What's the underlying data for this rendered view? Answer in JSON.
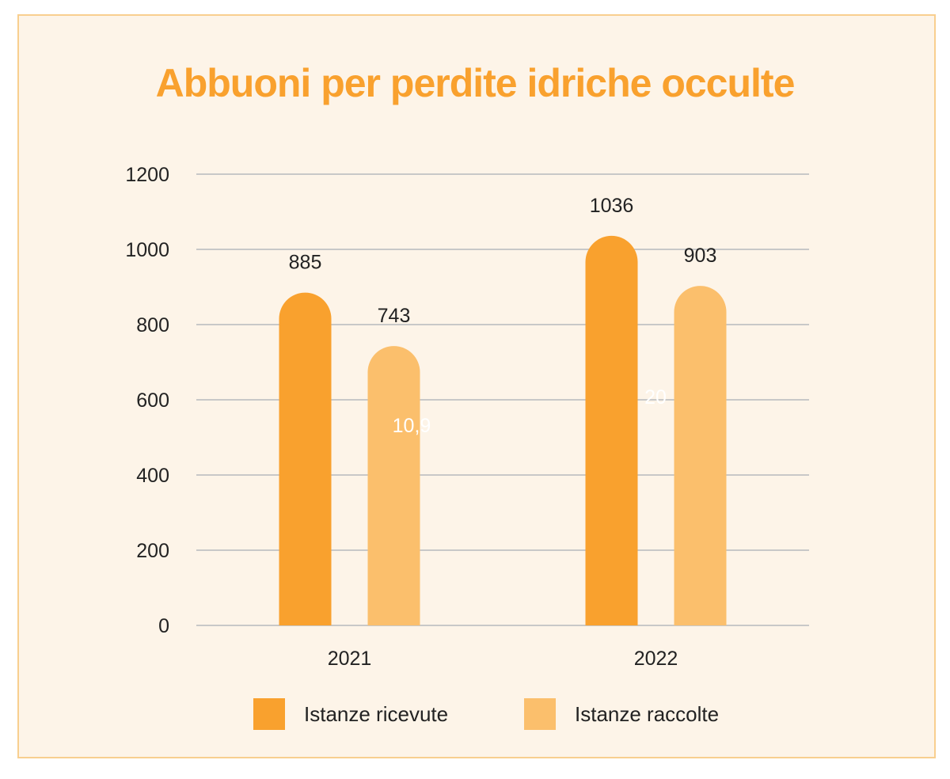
{
  "chart_data": {
    "type": "bar",
    "title": "Abbuoni per perdite idriche occulte",
    "categories": [
      "2021",
      "2022"
    ],
    "series": [
      {
        "name": "Istanze ricevute",
        "values": [
          885,
          1036
        ],
        "color": "#f9a12e"
      },
      {
        "name": "Istanze raccolte",
        "values": [
          743,
          903
        ],
        "color": "#fbbf6c"
      }
    ],
    "data_labels": [
      [
        "885",
        "743"
      ],
      [
        "1036",
        "903"
      ]
    ],
    "yticks": [
      "0",
      "200",
      "400",
      "600",
      "800",
      "1000",
      "1200"
    ],
    "ylim": [
      0,
      1200
    ],
    "bar_shape": "rounded-top",
    "grid": true,
    "legend_position": "bottom",
    "faint_annotations": [
      "10,9",
      "20"
    ],
    "xlabel": "",
    "ylabel": ""
  },
  "colors": {
    "background": "#fdf4e8",
    "border": "#f8cf8f",
    "title": "#f9a12e",
    "grid": "#c8c8c8",
    "text": "#222222"
  }
}
